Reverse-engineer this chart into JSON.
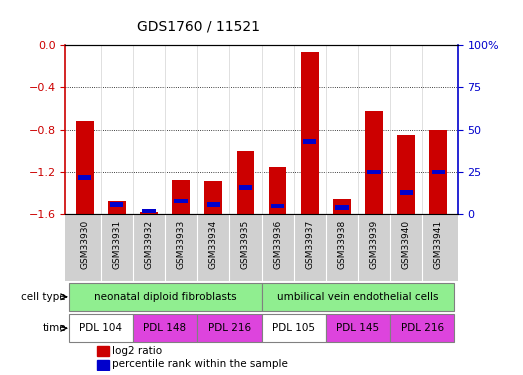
{
  "title": "GDS1760 / 11521",
  "samples": [
    "GSM33930",
    "GSM33931",
    "GSM33932",
    "GSM33933",
    "GSM33934",
    "GSM33935",
    "GSM33936",
    "GSM33937",
    "GSM33938",
    "GSM33939",
    "GSM33940",
    "GSM33941"
  ],
  "log2_ratio": [
    -0.72,
    -1.47,
    -1.58,
    -1.27,
    -1.28,
    -1.0,
    -1.15,
    -0.07,
    -1.45,
    -0.62,
    -0.85,
    -0.8
  ],
  "percentile": [
    22,
    6,
    2,
    8,
    6,
    16,
    5,
    43,
    4,
    25,
    13,
    25
  ],
  "ylim_left": [
    -1.6,
    0.0
  ],
  "ylim_right": [
    0,
    100
  ],
  "yticks_left": [
    0.0,
    -0.4,
    -0.8,
    -1.2,
    -1.6
  ],
  "yticks_right": [
    0,
    25,
    50,
    75,
    100
  ],
  "bar_color": "#cc0000",
  "pct_color": "#0000cc",
  "cell_type_groups": [
    {
      "label": "neonatal diploid fibroblasts",
      "start": 0,
      "end": 6,
      "color": "#90ee90"
    },
    {
      "label": "umbilical vein endothelial cells",
      "start": 6,
      "end": 12,
      "color": "#90ee90"
    }
  ],
  "time_groups": [
    {
      "label": "PDL 104",
      "start": 0,
      "end": 2,
      "color": "#ffffff"
    },
    {
      "label": "PDL 148",
      "start": 2,
      "end": 4,
      "color": "#dd44dd"
    },
    {
      "label": "PDL 216",
      "start": 4,
      "end": 6,
      "color": "#dd44dd"
    },
    {
      "label": "PDL 105",
      "start": 6,
      "end": 8,
      "color": "#ffffff"
    },
    {
      "label": "PDL 145",
      "start": 8,
      "end": 10,
      "color": "#dd44dd"
    },
    {
      "label": "PDL 216 ",
      "start": 10,
      "end": 12,
      "color": "#dd44dd"
    }
  ],
  "cell_type_label": "cell type",
  "time_label": "time",
  "legend_log2": "log2 ratio",
  "legend_pct": "percentile rank within the sample",
  "axis_label_color_left": "#cc0000",
  "axis_label_color_right": "#0000cc",
  "background_color": "#ffffff",
  "plot_bg_color": "#ffffff",
  "bar_width": 0.55,
  "bar_bottom": -1.6
}
